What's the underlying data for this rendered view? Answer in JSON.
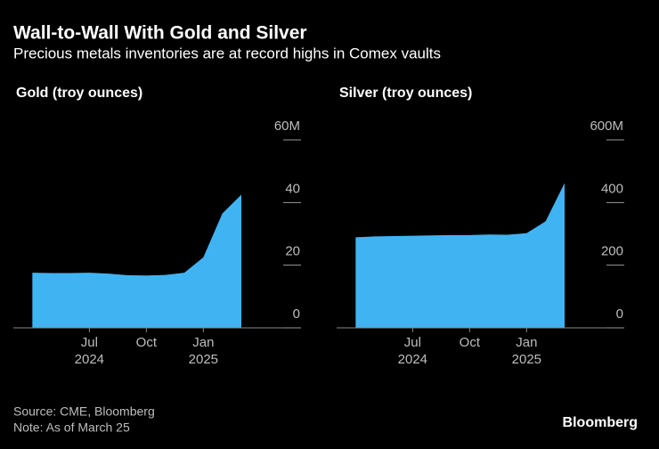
{
  "title": "Wall-to-Wall With Gold and Silver",
  "subtitle": "Precious metals inventories are at record highs in Comex vaults",
  "source": "Source: CME, Bloomberg",
  "note": "Note: As of March 25",
  "logo": "Bloomberg",
  "chart_data": [
    {
      "type": "area",
      "title": "Gold (troy ounces)",
      "color": "#40b4f3",
      "x": [
        "2024-04",
        "2024-05",
        "2024-06",
        "2024-07",
        "2024-08",
        "2024-09",
        "2024-10",
        "2024-11",
        "2024-12",
        "2025-01",
        "2025-02",
        "2025-03"
      ],
      "values": [
        17.6,
        17.5,
        17.5,
        17.6,
        17.3,
        16.8,
        16.7,
        16.9,
        17.6,
        22.5,
        36.5,
        42.5
      ],
      "xlim": [
        "2024-03",
        "2025-06"
      ],
      "xticks": [
        {
          "value": "2024-07",
          "label": "Jul",
          "year": "2024"
        },
        {
          "value": "2024-10",
          "label": "Oct"
        },
        {
          "value": "2025-01",
          "label": "Jan",
          "year": "2025"
        }
      ],
      "ylim": [
        0,
        60
      ],
      "yticks": [
        {
          "value": 60,
          "label": "60M"
        },
        40,
        20,
        0
      ]
    },
    {
      "type": "area",
      "title": "Silver (troy ounces)",
      "color": "#40b4f3",
      "x": [
        "2024-04",
        "2024-05",
        "2024-06",
        "2024-07",
        "2024-08",
        "2024-09",
        "2024-10",
        "2024-11",
        "2024-12",
        "2025-01",
        "2025-02",
        "2025-03"
      ],
      "values": [
        289,
        292,
        293,
        294,
        295,
        296,
        296,
        298,
        297,
        302,
        340,
        462
      ],
      "xlim": [
        "2024-03",
        "2025-06"
      ],
      "xticks": [
        {
          "value": "2024-07",
          "label": "Jul",
          "year": "2024"
        },
        {
          "value": "2024-10",
          "label": "Oct"
        },
        {
          "value": "2025-01",
          "label": "Jan",
          "year": "2025"
        }
      ],
      "ylim": [
        0,
        600
      ],
      "yticks": [
        {
          "value": 600,
          "label": "600M"
        },
        400,
        200,
        0
      ]
    }
  ]
}
